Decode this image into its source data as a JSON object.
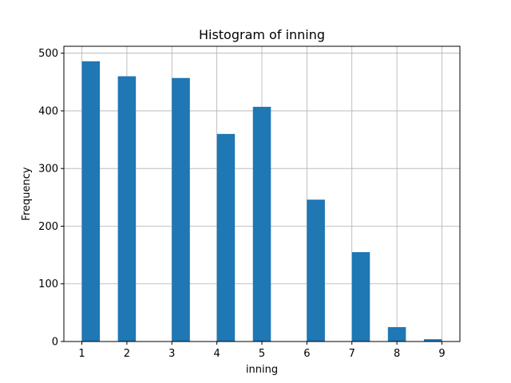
{
  "chart_data": {
    "type": "bar",
    "title": "Histogram of inning",
    "xlabel": "inning",
    "ylabel": "Frequency",
    "x_ticks": [
      "1",
      "2",
      "3",
      "4",
      "5",
      "6",
      "7",
      "8",
      "9"
    ],
    "y_ticks": [
      "0",
      "100",
      "200",
      "300",
      "400",
      "500"
    ],
    "xlim": [
      0.6,
      9.4
    ],
    "ylim": [
      0,
      512
    ],
    "grid": true,
    "bar_color": "#1f77b4",
    "bins": [
      {
        "x0": 1.0,
        "x1": 1.4,
        "value": 486
      },
      {
        "x0": 1.8,
        "x1": 2.2,
        "value": 460
      },
      {
        "x0": 3.0,
        "x1": 3.4,
        "value": 457
      },
      {
        "x0": 4.0,
        "x1": 4.4,
        "value": 360
      },
      {
        "x0": 4.8,
        "x1": 5.2,
        "value": 407
      },
      {
        "x0": 6.0,
        "x1": 6.4,
        "value": 246
      },
      {
        "x0": 7.0,
        "x1": 7.4,
        "value": 155
      },
      {
        "x0": 7.8,
        "x1": 8.2,
        "value": 25
      },
      {
        "x0": 8.6,
        "x1": 9.0,
        "value": 4
      }
    ]
  }
}
